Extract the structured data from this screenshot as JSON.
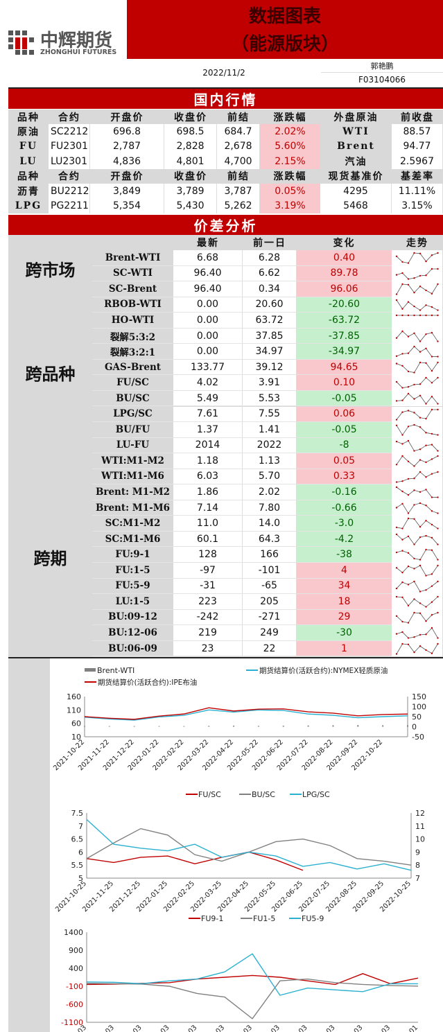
{
  "header": {
    "logo_cn": "中辉期货",
    "logo_en": "ZHONGHUI FUTURES",
    "title_line1": "数据图表",
    "title_line2": "（能源版块）",
    "date": "2022/11/2",
    "analyst": "郭艳鹏",
    "license": "F03104066",
    "accent": "#c00000"
  },
  "domestic": {
    "section_title": "国内行情",
    "headers1": [
      "品种",
      "合约",
      "开盘价",
      "收盘价",
      "前结",
      "涨跌幅",
      "外盘原油",
      "前收盘"
    ],
    "rows1": [
      [
        "原油",
        "SC2212",
        "696.8",
        "698.5",
        "684.7",
        "2.02%",
        "WTI",
        "88.57"
      ],
      [
        "FU",
        "FU2301",
        "2,787",
        "2,828",
        "2,678",
        "5.60%",
        "Brent",
        "94.77"
      ],
      [
        "LU",
        "LU2301",
        "4,836",
        "4,801",
        "4,700",
        "2.15%",
        "汽油",
        "2.5967"
      ]
    ],
    "headers2": [
      "品种",
      "合约",
      "开盘价",
      "收盘价",
      "前结",
      "涨跌幅",
      "现货基准价",
      "基差率"
    ],
    "rows2": [
      [
        "沥青",
        "BU2212",
        "3,849",
        "3,789",
        "3,787",
        "0.05%",
        "4295",
        "11.11%"
      ],
      [
        "LPG",
        "PG2211",
        "5,354",
        "5,430",
        "5,262",
        "3.19%",
        "5468",
        "3.15%"
      ]
    ]
  },
  "spread": {
    "section_title": "价差分析",
    "headers": [
      "最新",
      "前一日",
      "变化",
      "走势"
    ],
    "groups": [
      "跨市场",
      "跨品种",
      "跨期"
    ],
    "rows": [
      [
        "Brent-WTI",
        "6.68",
        "6.28",
        "0.40",
        "up"
      ],
      [
        "SC-WTI",
        "96.40",
        "6.62",
        "89.78",
        "up"
      ],
      [
        "SC-Brent",
        "96.40",
        "0.34",
        "96.06",
        "up"
      ],
      [
        "RBOB-WTI",
        "0.00",
        "20.60",
        "-20.60",
        "down"
      ],
      [
        "HO-WTI",
        "0.00",
        "63.72",
        "-63.72",
        "down"
      ],
      [
        "裂解5:3:2",
        "0.00",
        "37.85",
        "-37.85",
        "down"
      ],
      [
        "裂解3:2:1",
        "0.00",
        "34.97",
        "-34.97",
        "down"
      ],
      [
        "GAS-Brent",
        "133.77",
        "39.12",
        "94.65",
        "up"
      ],
      [
        "FU/SC",
        "4.02",
        "3.91",
        "0.10",
        "up"
      ],
      [
        "BU/SC",
        "5.49",
        "5.53",
        "-0.05",
        "down"
      ],
      [
        "LPG/SC",
        "7.61",
        "7.55",
        "0.06",
        "up"
      ],
      [
        "BU/FU",
        "1.37",
        "1.41",
        "-0.05",
        "down"
      ],
      [
        "LU-FU",
        "2014",
        "2022",
        "-8",
        "down"
      ],
      [
        "WTI:M1-M2",
        "1.18",
        "1.13",
        "0.05",
        "up"
      ],
      [
        "WTI:M1-M6",
        "6.03",
        "5.70",
        "0.33",
        "up"
      ],
      [
        "Brent: M1-M2",
        "1.86",
        "2.02",
        "-0.16",
        "down"
      ],
      [
        "Brent: M1-M6",
        "7.14",
        "7.80",
        "-0.66",
        "down"
      ],
      [
        "SC:M1-M2",
        "11.0",
        "14.0",
        "-3.0",
        "down"
      ],
      [
        "SC:M1-M6",
        "60.1",
        "64.3",
        "-4.2",
        "down"
      ],
      [
        "FU:9-1",
        "128",
        "166",
        "-38",
        "down"
      ],
      [
        "FU:1-5",
        "-97",
        "-101",
        "4",
        "up"
      ],
      [
        "FU:5-9",
        "-31",
        "-65",
        "34",
        "up"
      ],
      [
        "LU:1-5",
        "223",
        "205",
        "18",
        "up"
      ],
      [
        "BU:09-12",
        "-242",
        "-271",
        "29",
        "up"
      ],
      [
        "BU:12-06",
        "219",
        "249",
        "-30",
        "down"
      ],
      [
        "BU:06-09",
        "23",
        "22",
        "1",
        "up"
      ]
    ]
  },
  "chart_data": [
    {
      "type": "line",
      "legend": [
        "Brent-WTI",
        "期货结算价(活跃合约):NYMEX轻质原油",
        "期货结算价(活跃合约):IPE布油"
      ],
      "colors": [
        "#808080",
        "#2ab0d0",
        "#c00000"
      ],
      "x": [
        "2021-10-22",
        "2021-11-22",
        "2021-12-22",
        "2022-01-22",
        "2022-02-22",
        "2022-03-22",
        "2022-04-22",
        "2022-05-22",
        "2022-06-22",
        "2022-07-22",
        "2022-08-22",
        "2022-09-22",
        "2022-10-22",
        "2022-11-01"
      ],
      "yticks_left": [
        160,
        110,
        60,
        10
      ],
      "yticks_right": [
        150,
        100,
        50,
        0,
        -50
      ],
      "ylim_left": [
        10,
        160
      ],
      "ylim_right": [
        -50,
        150
      ],
      "series": [
        {
          "name": "Brent-WTI",
          "axis": "right",
          "type": "bar",
          "values": [
            3,
            3,
            3,
            3,
            3,
            4,
            5,
            4,
            5,
            6,
            7,
            8,
            7,
            6.7
          ]
        },
        {
          "name": "期货结算价(活跃合约):NYMEX轻质原油",
          "axis": "left",
          "values": [
            83,
            76,
            72,
            84,
            90,
            110,
            102,
            110,
            108,
            95,
            90,
            81,
            85,
            88
          ]
        },
        {
          "name": "期货结算价(活跃合约):IPE布油",
          "axis": "left",
          "values": [
            85,
            79,
            75,
            87,
            95,
            118,
            106,
            113,
            114,
            103,
            98,
            88,
            93,
            94.7
          ]
        }
      ]
    },
    {
      "type": "line",
      "legend": [
        "FU/SC",
        "BU/SC",
        "LPG/SC"
      ],
      "colors": [
        "#c00000",
        "#808080",
        "#2ab0d0"
      ],
      "x": [
        "2021-10-25",
        "2021-11-25",
        "2021-12-25",
        "2022-01-25",
        "2022-02-25",
        "2022-03-25",
        "2022-04-25",
        "2022-05-25",
        "2022-06-25",
        "2022-07-25",
        "2022-08-25",
        "2022-09-25",
        "2022-10-25"
      ],
      "yticks_left": [
        7.5,
        7,
        6.5,
        6,
        5.5,
        5
      ],
      "yticks_right": [
        12,
        11,
        10,
        9,
        8,
        7
      ],
      "ylim_left": [
        5,
        7.5
      ],
      "ylim_right": [
        7,
        12
      ],
      "series": [
        {
          "name": "FU/SC",
          "axis": "left",
          "values": [
            5.75,
            5.6,
            5.8,
            5.85,
            5.55,
            5.8,
            6.0,
            5.7,
            5.3,
            null,
            null,
            null,
            null
          ]
        },
        {
          "name": "BU/SC",
          "axis": "right",
          "values": [
            8.5,
            9.7,
            10.8,
            10.3,
            8.8,
            8.3,
            9.0,
            9.8,
            10.0,
            9.5,
            8.5,
            8.3,
            8.0
          ]
        },
        {
          "name": "LPG/SC",
          "axis": "right",
          "values": [
            11.5,
            9.6,
            9.3,
            9.1,
            9.6,
            8.6,
            9.0,
            8.7,
            7.9,
            8.2,
            7.7,
            8.1,
            7.6
          ]
        }
      ]
    },
    {
      "type": "line",
      "legend": [
        "FU9-1",
        "FU1-5",
        "FU5-9"
      ],
      "colors": [
        "#c00000",
        "#808080",
        "#2ab0d0"
      ],
      "x": [
        "2021-11-03",
        "2021-12-03",
        "2022-01-03",
        "2022-02-03",
        "2022-03-03",
        "2022-04-03",
        "2022-05-03",
        "2022-06-03",
        "2022-07-03",
        "2022-08-03",
        "2022-09-03",
        "2022-10-03",
        "2022-11-01"
      ],
      "yticks": [
        1400,
        900,
        400,
        -100,
        -600,
        -1100
      ],
      "ylim": [
        -1100,
        1400
      ],
      "series": [
        {
          "name": "FU9-1",
          "values": [
            -50,
            -40,
            -20,
            0,
            100,
            150,
            200,
            150,
            50,
            -50,
            250,
            -30,
            128
          ]
        },
        {
          "name": "FU1-5",
          "values": [
            -20,
            -30,
            -40,
            -100,
            -300,
            -400,
            -1000,
            50,
            100,
            0,
            -50,
            -80,
            -97
          ]
        },
        {
          "name": "FU5-9",
          "values": [
            20,
            10,
            -30,
            50,
            100,
            300,
            800,
            -350,
            -150,
            -200,
            -250,
            -30,
            -31
          ]
        }
      ]
    }
  ]
}
